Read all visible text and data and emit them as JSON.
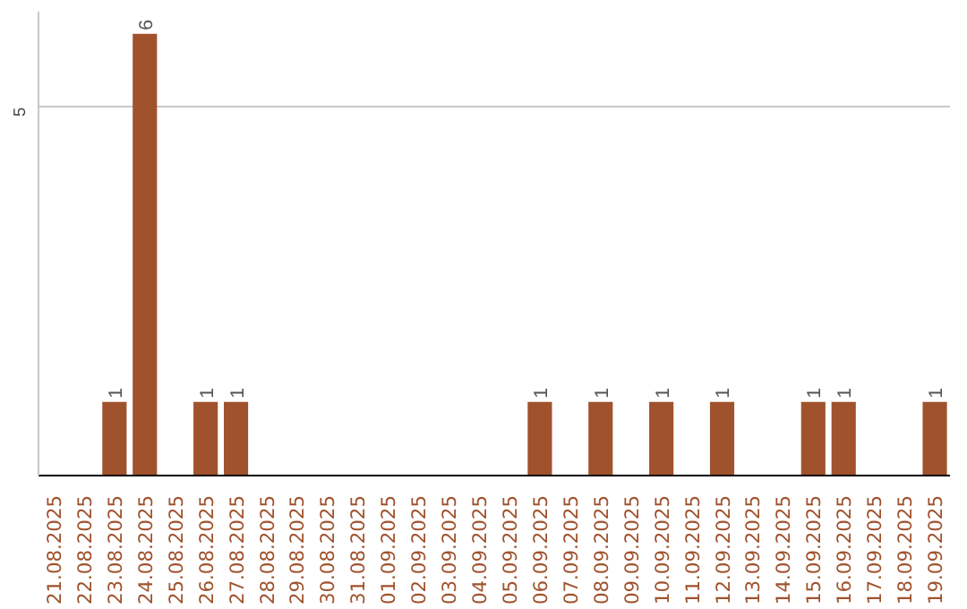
{
  "chart_data": {
    "type": "bar",
    "categories": [
      "21.08.2025",
      "22.08.2025",
      "23.08.2025",
      "24.08.2025",
      "25.08.2025",
      "26.08.2025",
      "27.08.2025",
      "28.08.2025",
      "29.08.2025",
      "30.08.2025",
      "31.08.2025",
      "01.09.2025",
      "02.09.2025",
      "03.09.2025",
      "04.09.2025",
      "05.09.2025",
      "06.09.2025",
      "07.09.2025",
      "08.09.2025",
      "09.09.2025",
      "10.09.2025",
      "11.09.2025",
      "12.09.2025",
      "13.09.2025",
      "14.09.2025",
      "15.09.2025",
      "16.09.2025",
      "17.09.2025",
      "18.09.2025",
      "19.09.2025"
    ],
    "values": [
      0,
      0,
      1,
      6,
      0,
      1,
      1,
      0,
      0,
      0,
      0,
      0,
      0,
      0,
      0,
      0,
      1,
      0,
      1,
      0,
      1,
      0,
      1,
      0,
      0,
      1,
      1,
      0,
      0,
      1
    ],
    "color": "#a0522d",
    "value_labels": [
      null,
      null,
      "1",
      "6",
      null,
      "1",
      "1",
      null,
      null,
      null,
      null,
      null,
      null,
      null,
      null,
      null,
      "1",
      null,
      "1",
      null,
      "1",
      null,
      "1",
      null,
      null,
      "1",
      "1",
      null,
      null,
      "1"
    ],
    "ylim": [
      0,
      6.3
    ],
    "yticks": [
      5
    ],
    "grid": "y"
  }
}
